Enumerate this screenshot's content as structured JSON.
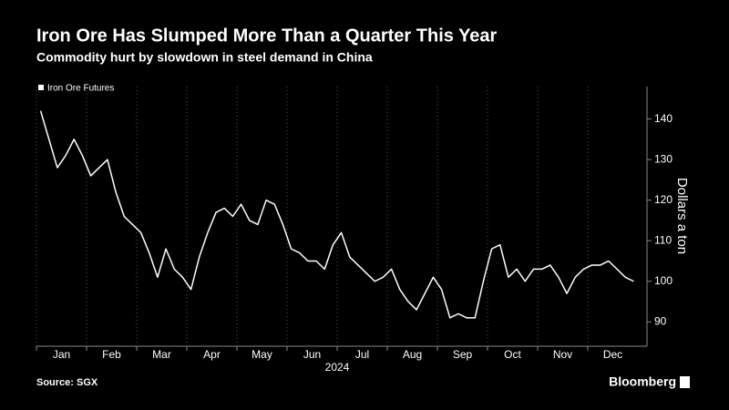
{
  "chart_data": {
    "type": "line",
    "title": "Iron Ore Has Slumped More Than a Quarter This Year",
    "subtitle": "Commodity hurt by slowdown in steel demand in China",
    "source": "Source: SGX",
    "brand": "Bloomberg",
    "xlabel": "2024",
    "ylabel": "Dollars a ton",
    "categories": [
      null,
      null,
      null,
      "Jan",
      null,
      null,
      null,
      null,
      null,
      "Feb",
      null,
      null,
      null,
      null,
      null,
      "Mar",
      null,
      null,
      null,
      null,
      null,
      "Apr",
      null,
      null,
      null,
      null,
      null,
      "May",
      null,
      null,
      null,
      null,
      null,
      "Jun",
      null,
      null,
      null,
      null,
      null,
      "Jul",
      null,
      null,
      null,
      null,
      null,
      "Aug",
      null,
      null,
      null,
      null,
      null,
      "Sep",
      null,
      null,
      null,
      null,
      null,
      "Oct",
      null,
      null,
      null,
      null,
      null,
      "Nov",
      null,
      null,
      null,
      null,
      null,
      "Dec",
      null,
      null
    ],
    "series": [
      {
        "name": "Iron Ore Futures",
        "color": "#ffffff",
        "values": [
          142,
          135,
          128,
          131,
          135,
          131,
          126,
          128,
          130,
          122,
          116,
          114,
          112,
          107,
          101,
          108,
          103,
          101,
          98,
          106,
          112,
          117,
          118,
          116,
          119,
          115,
          114,
          120,
          119,
          114,
          108,
          107,
          105,
          105,
          103,
          109,
          112,
          106,
          104,
          102,
          100,
          101,
          103,
          98,
          95,
          93,
          97,
          101,
          98,
          91,
          92,
          91,
          91,
          100,
          108,
          109,
          101,
          103,
          100,
          103,
          103,
          104,
          101,
          97,
          101,
          103,
          104,
          104,
          105,
          103,
          101,
          100
        ]
      }
    ],
    "ylim": [
      84,
      148
    ],
    "yticks": [
      90,
      100,
      110,
      120,
      130,
      140
    ],
    "grid": true
  }
}
